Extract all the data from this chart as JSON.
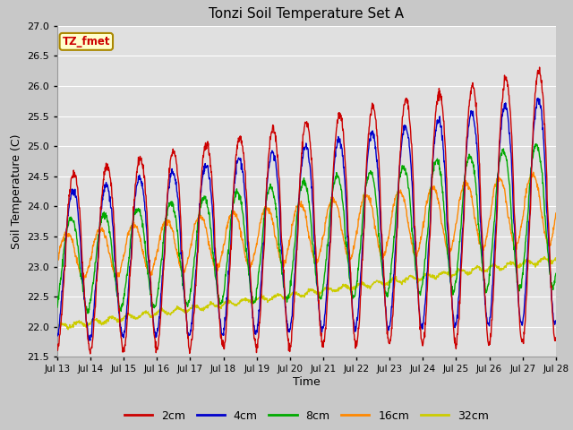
{
  "title": "Tonzi Soil Temperature Set A",
  "xlabel": "Time",
  "ylabel": "Soil Temperature (C)",
  "ylim": [
    21.5,
    27.0
  ],
  "x_tick_labels": [
    "Jul 13",
    "Jul 14",
    "Jul 15",
    "Jul 16",
    "Jul 17",
    "Jul 18",
    "Jul 19",
    "Jul 20",
    "Jul 21",
    "Jul 22",
    "Jul 23",
    "Jul 24",
    "Jul 25",
    "Jul 26",
    "Jul 27",
    "Jul 28"
  ],
  "legend_labels": [
    "2cm",
    "4cm",
    "8cm",
    "16cm",
    "32cm"
  ],
  "line_colors": [
    "#cc0000",
    "#0000cc",
    "#00aa00",
    "#ff8800",
    "#cccc00"
  ],
  "annotation_text": "TZ_fmet",
  "annotation_color": "#cc0000",
  "annotation_bg": "#ffffcc",
  "annotation_border": "#aa8800",
  "fig_bg": "#c8c8c8",
  "plot_bg": "#e0e0e0",
  "grid_color": "#ffffff",
  "yticks": [
    21.5,
    22.0,
    22.5,
    23.0,
    23.5,
    24.0,
    24.5,
    25.0,
    25.5,
    26.0,
    26.5,
    27.0
  ]
}
